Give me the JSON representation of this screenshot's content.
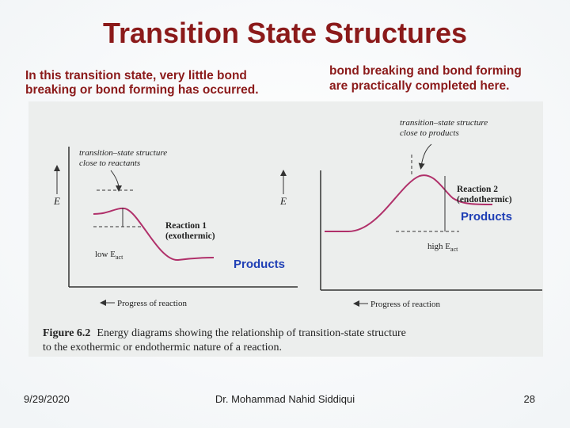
{
  "slide": {
    "title": "Transition State Structures",
    "callout_left": [
      "In this transition state, very little bond",
      "breaking or bond forming has occurred."
    ],
    "callout_right": [
      "bond breaking and bond forming",
      "are practically completed here."
    ],
    "products_left": "Products",
    "products_right": "Products",
    "figure": {
      "left": {
        "annotation": [
          "transition–state structure",
          "close to reactants"
        ],
        "axis_y": "E",
        "reaction": [
          "Reaction 1",
          "(exothermic)"
        ],
        "energy": "low E",
        "energy_sub": "act",
        "axis_x": "Progress of reaction"
      },
      "right": {
        "annotation": [
          "transition–state structure",
          "close to products"
        ],
        "axis_y": "E",
        "reaction": [
          "Reaction 2",
          "(endothermic)"
        ],
        "energy": "high E",
        "energy_sub": "act",
        "axis_x": "Progress of reaction"
      },
      "caption_label": "Figure 6.2",
      "caption": [
        "Energy diagrams showing the relationship of transition-state structure",
        "to the exothermic or endothermic nature of a reaction."
      ]
    },
    "footer": {
      "date": "9/29/2020",
      "author": "Dr. Mohammad Nahid Siddiqui",
      "page": "28"
    }
  }
}
